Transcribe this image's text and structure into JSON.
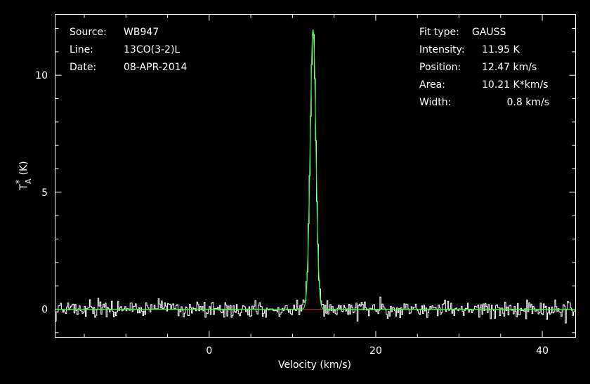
{
  "chart_data": {
    "type": "line",
    "xlabel": "Velocity (km/s)",
    "ylabel": "T*A (K)",
    "ylabel_main": "T",
    "ylabel_sup": "*",
    "ylabel_sub": "A",
    "ylabel_unit": "(K)",
    "xlim": [
      -18.5,
      44.0
    ],
    "ylim": [
      -1.2,
      12.6
    ],
    "x_ticks": [
      0,
      20,
      40
    ],
    "x_tick_labels": [
      "0",
      "20",
      "40"
    ],
    "y_ticks": [
      0,
      5,
      10
    ],
    "y_tick_labels": [
      "0",
      "5",
      "10"
    ],
    "grid": false,
    "colors": {
      "spectrum": "#ffffff",
      "fit": "#33ff33",
      "baseline": "#dd1111",
      "background": "#000000"
    },
    "info_left": [
      {
        "key": "Source:",
        "value": "WB947"
      },
      {
        "key": "Line:",
        "value": "13CO(3-2)L"
      },
      {
        "key": "Date:",
        "value": "08-APR-2014"
      }
    ],
    "fit": {
      "type_label": "Fit type:",
      "type_value": "GAUSS",
      "rows": [
        {
          "key": "Intensity:",
          "value": "11.95 K"
        },
        {
          "key": "Position:",
          "value": "12.47 km/s"
        },
        {
          "key": "Area:",
          "value": "10.21 K*km/s"
        },
        {
          "key": "Width:",
          "value": "0.8 km/s"
        }
      ],
      "amplitude": 11.95,
      "center": 12.47,
      "fwhm": 0.8
    },
    "spectrum": {
      "x_start": -18.5,
      "channel_width": 0.125,
      "n_channels": 500,
      "noise_rms": 0.18
    }
  }
}
